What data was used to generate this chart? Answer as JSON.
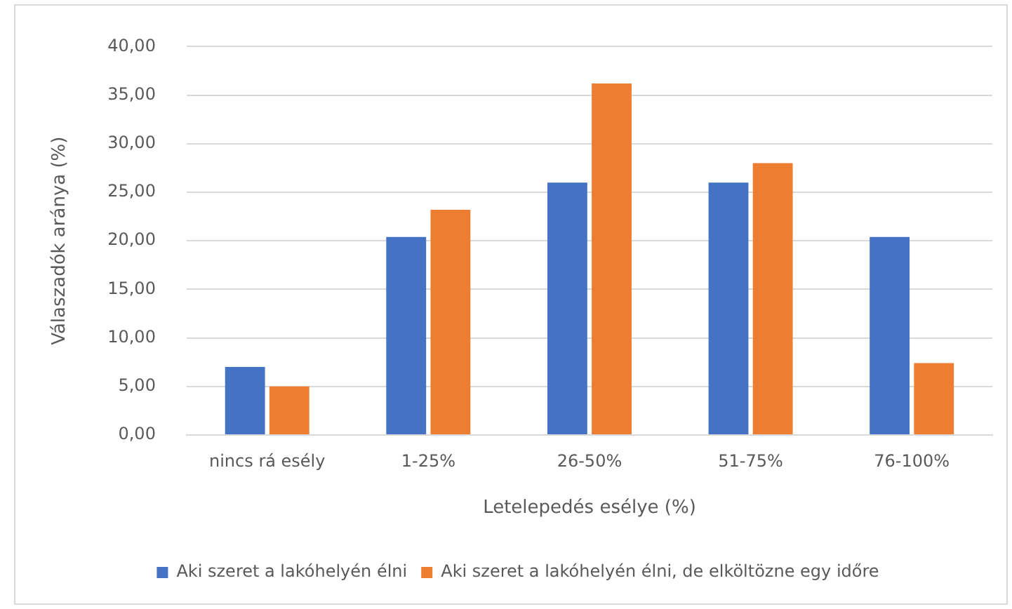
{
  "chart_data": {
    "type": "bar",
    "xlabel": "Letelepedés esélye (%)",
    "ylabel": "Válaszadók aránya (%)",
    "categories": [
      "nincs rá esély",
      "1-25%",
      "26-50%",
      "51-75%",
      "76-100%"
    ],
    "series": [
      {
        "name": "Aki szeret a lakóhelyén élni",
        "color": "#4472c4",
        "values": [
          7.0,
          20.4,
          26.0,
          26.0,
          20.4
        ]
      },
      {
        "name": "Aki szeret a lakóhelyén élni, de elköltözne egy időre",
        "color": "#ed7d31",
        "values": [
          5.0,
          23.2,
          36.2,
          28.0,
          7.4
        ]
      }
    ],
    "ylim": [
      0,
      40
    ],
    "yticks": [
      {
        "value": 0,
        "label": "0,00"
      },
      {
        "value": 5,
        "label": "5,00"
      },
      {
        "value": 10,
        "label": "10,00"
      },
      {
        "value": 15,
        "label": "15,00"
      },
      {
        "value": 20,
        "label": "20,00"
      },
      {
        "value": 25,
        "label": "25,00"
      },
      {
        "value": 30,
        "label": "30,00"
      },
      {
        "value": 35,
        "label": "35,00"
      },
      {
        "value": 40,
        "label": "40,00"
      }
    ],
    "grid": "y",
    "legend": "bottom"
  }
}
